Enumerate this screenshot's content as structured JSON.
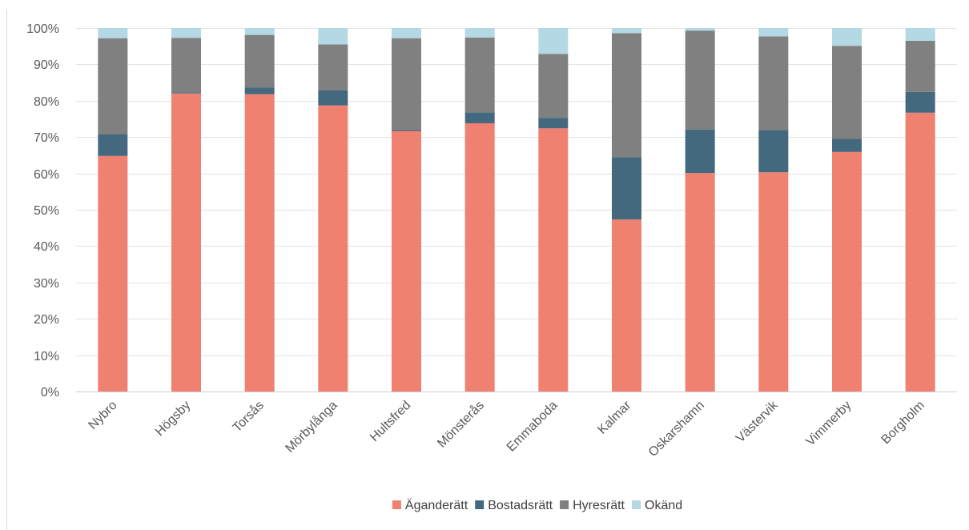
{
  "chart_data": {
    "type": "bar",
    "stacked": true,
    "percent": true,
    "title": "",
    "xlabel": "",
    "ylabel": "",
    "ylim": [
      0,
      100
    ],
    "yticks": [
      "0%",
      "10%",
      "20%",
      "30%",
      "40%",
      "50%",
      "60%",
      "70%",
      "80%",
      "90%",
      "100%"
    ],
    "grid": true,
    "legend_position": "bottom",
    "categories": [
      "Nybro",
      "Högsby",
      "Torsås",
      "Mörbylånga",
      "Hultsfred",
      "Mönsterås",
      "Emmaboda",
      "Kalmar",
      "Oskarshamn",
      "Västervik",
      "Vimmerby",
      "Borgholm"
    ],
    "series": [
      {
        "name": "Äganderätt",
        "color": "#f08070",
        "values": [
          64.8,
          82.0,
          81.8,
          78.7,
          71.7,
          73.8,
          72.4,
          47.3,
          60.1,
          60.3,
          65.9,
          76.7
        ]
      },
      {
        "name": "Bostadsrätt",
        "color": "#44687e",
        "values": [
          6.0,
          0.3,
          1.8,
          4.2,
          0.4,
          3.0,
          2.9,
          17.2,
          12.0,
          11.6,
          3.6,
          5.7
        ]
      },
      {
        "name": "Hyresrätt",
        "color": "#808080",
        "values": [
          26.4,
          15.0,
          14.5,
          12.6,
          25.1,
          20.6,
          17.6,
          34.1,
          27.2,
          25.8,
          25.6,
          14.1
        ]
      },
      {
        "name": "Okänd",
        "color": "#b4d8e4",
        "values": [
          2.8,
          2.7,
          1.9,
          4.5,
          2.8,
          2.6,
          7.1,
          1.4,
          0.7,
          2.3,
          4.9,
          3.5
        ]
      }
    ]
  }
}
